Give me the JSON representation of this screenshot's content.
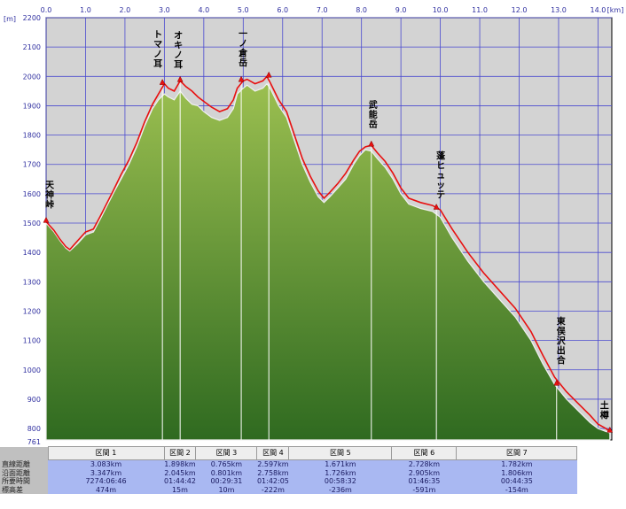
{
  "chart_data": {
    "type": "area",
    "x_unit_label": "[km]",
    "y_unit_label": "[m]",
    "xlim": [
      0,
      14.35
    ],
    "ylim": [
      761,
      2200
    ],
    "y_min_label": "761",
    "x_ticks": [
      "0.0",
      "1.0",
      "2.0",
      "3.0",
      "4.0",
      "5.0",
      "6.0",
      "7.0",
      "8.0",
      "9.0",
      "10.0",
      "11.0",
      "12.0",
      "13.0",
      "14.0"
    ],
    "y_ticks": [
      "2200",
      "2100",
      "2000",
      "1900",
      "1800",
      "1700",
      "1600",
      "1500",
      "1400",
      "1300",
      "1200",
      "1100",
      "1000",
      "900",
      "800"
    ],
    "terrain_profile": {
      "x": [
        0,
        0.2,
        0.35,
        0.5,
        0.6,
        0.8,
        1.0,
        1.2,
        1.4,
        1.55,
        1.7,
        1.9,
        2.1,
        2.3,
        2.5,
        2.7,
        2.85,
        3.0,
        3.1,
        3.25,
        3.4,
        3.55,
        3.7,
        3.85,
        4.0,
        4.2,
        4.4,
        4.6,
        4.75,
        4.85,
        5.0,
        5.1,
        5.3,
        5.5,
        5.6,
        5.7,
        5.9,
        6.1,
        6.3,
        6.5,
        6.7,
        6.9,
        7.05,
        7.2,
        7.4,
        7.6,
        7.8,
        7.95,
        8.1,
        8.25,
        8.4,
        8.6,
        8.8,
        9.0,
        9.2,
        9.5,
        9.8,
        10.0,
        10.3,
        10.7,
        11.1,
        11.5,
        11.9,
        12.3,
        12.6,
        12.9,
        13.2,
        13.5,
        13.8,
        14.0,
        14.2,
        14.3
      ],
      "y": [
        1500,
        1470,
        1440,
        1415,
        1405,
        1430,
        1460,
        1470,
        1520,
        1560,
        1600,
        1650,
        1700,
        1760,
        1830,
        1890,
        1920,
        1940,
        1930,
        1920,
        1950,
        1925,
        1905,
        1900,
        1880,
        1860,
        1850,
        1860,
        1890,
        1940,
        1960,
        1970,
        1950,
        1960,
        1975,
        1955,
        1900,
        1860,
        1780,
        1700,
        1640,
        1590,
        1570,
        1590,
        1620,
        1650,
        1700,
        1730,
        1750,
        1745,
        1720,
        1690,
        1650,
        1600,
        1565,
        1550,
        1540,
        1520,
        1450,
        1370,
        1300,
        1240,
        1180,
        1100,
        1020,
        950,
        900,
        860,
        820,
        800,
        790,
        785
      ]
    },
    "route_profile": {
      "x": [
        0,
        0.2,
        0.35,
        0.5,
        0.6,
        0.8,
        1.0,
        1.2,
        1.4,
        1.55,
        1.7,
        1.9,
        2.1,
        2.3,
        2.5,
        2.7,
        2.85,
        3.0,
        3.1,
        3.25,
        3.4,
        3.55,
        3.7,
        3.85,
        4.0,
        4.2,
        4.4,
        4.6,
        4.75,
        4.85,
        5.0,
        5.1,
        5.3,
        5.5,
        5.6,
        5.7,
        5.9,
        6.1,
        6.3,
        6.5,
        6.7,
        6.9,
        7.05,
        7.2,
        7.4,
        7.6,
        7.8,
        7.95,
        8.1,
        8.25,
        8.4,
        8.6,
        8.8,
        9.0,
        9.2,
        9.5,
        9.8,
        10.0,
        10.3,
        10.7,
        11.1,
        11.5,
        11.9,
        12.3,
        12.6,
        12.9,
        13.2,
        13.5,
        13.8,
        14.0,
        14.2,
        14.3
      ],
      "y": [
        1505,
        1475,
        1445,
        1420,
        1410,
        1440,
        1470,
        1480,
        1530,
        1570,
        1610,
        1665,
        1715,
        1775,
        1845,
        1905,
        1940,
        1975,
        1960,
        1950,
        1985,
        1965,
        1950,
        1930,
        1915,
        1895,
        1880,
        1890,
        1920,
        1960,
        1985,
        1990,
        1975,
        1985,
        2000,
        1975,
        1920,
        1880,
        1800,
        1720,
        1660,
        1610,
        1585,
        1605,
        1635,
        1670,
        1715,
        1745,
        1760,
        1765,
        1740,
        1710,
        1670,
        1620,
        1585,
        1570,
        1560,
        1545,
        1480,
        1400,
        1330,
        1270,
        1210,
        1130,
        1050,
        975,
        925,
        885,
        845,
        815,
        800,
        790
      ]
    },
    "waypoints": [
      {
        "name": "天神峠",
        "x": 0.0,
        "y": 1505
      },
      {
        "name": "トマノ耳",
        "x": 2.95,
        "y": 1975
      },
      {
        "name": "オキノ耳",
        "x": 3.4,
        "y": 1985
      },
      {
        "name": "一ノ倉岳",
        "x": 4.95,
        "y": 1985
      },
      {
        "name": "",
        "x": 5.65,
        "y": 2000
      },
      {
        "name": "武能岳",
        "x": 8.25,
        "y": 1765
      },
      {
        "name": "蓬ヒュッテ",
        "x": 9.9,
        "y": 1550
      },
      {
        "name": "東俣沢出合",
        "x": 12.95,
        "y": 950
      },
      {
        "name": "土樽",
        "x": 14.3,
        "y": 790
      }
    ],
    "grid": true
  },
  "stats_table": {
    "row_labels": [
      "直線距離",
      "沿面距離",
      "所要時間",
      "標高差"
    ],
    "sections": [
      {
        "name": "区間 1",
        "values": [
          "3.083km",
          "3.347km",
          "7274:06:46",
          "474m"
        ]
      },
      {
        "name": "区間 2",
        "values": [
          "1.898km",
          "2.045km",
          "01:44:42",
          "15m"
        ]
      },
      {
        "name": "区間 3",
        "values": [
          "0.765km",
          "0.801km",
          "00:29:31",
          "10m"
        ]
      },
      {
        "name": "区間 4",
        "values": [
          "2.597km",
          "2.758km",
          "01:42:05",
          "-222m"
        ]
      },
      {
        "name": "区間 5",
        "values": [
          "1.671km",
          "1.726km",
          "00:58:32",
          "-236m"
        ]
      },
      {
        "name": "区間 6",
        "values": [
          "2.728km",
          "2.905km",
          "01:46:35",
          "-591m"
        ]
      },
      {
        "name": "区間 7",
        "values": [
          "1.782km",
          "1.806km",
          "00:44:35",
          "-154m"
        ]
      }
    ]
  },
  "colors": {
    "plot_bg": "#d3d3d3",
    "grid": "#4a4ad0",
    "route_line": "#e81010",
    "terrain_top": "#9bbf50",
    "terrain_bottom": "#2f6a20",
    "stats_value_bg": "#a9b8f2"
  }
}
